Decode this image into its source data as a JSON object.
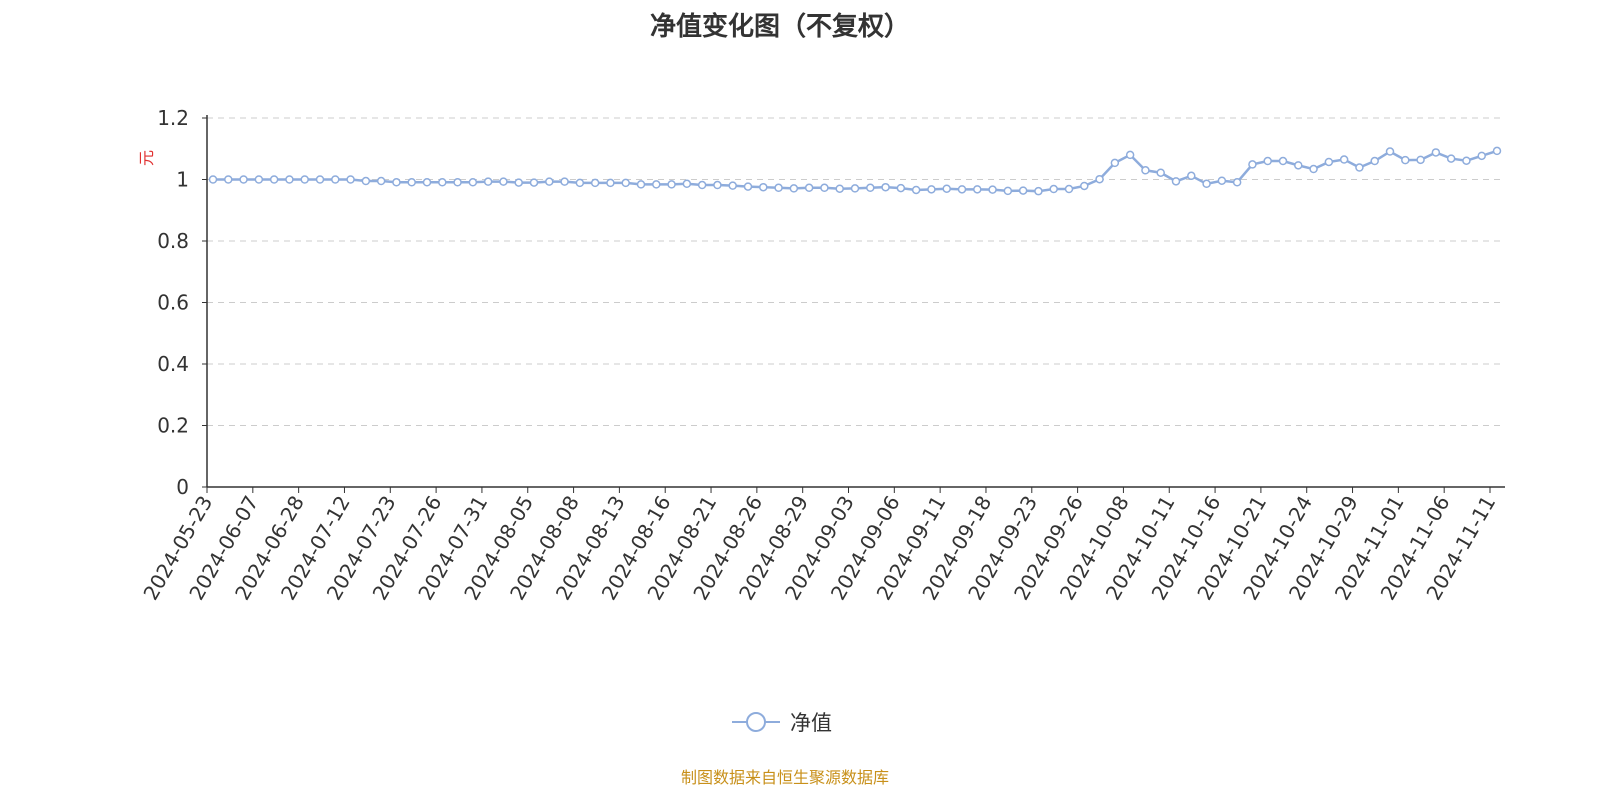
{
  "chart_data": {
    "type": "line",
    "title": "净值变化图（不复权）",
    "ylabel": "元",
    "ylim": [
      0,
      1.2
    ],
    "yticks": [
      "0",
      "0.2",
      "0.4",
      "0.6",
      "0.8",
      "1",
      "1.2"
    ],
    "grid": true,
    "legend_position": "bottom",
    "x_tick_labels": [
      "2024-05-23",
      "2024-06-07",
      "2024-06-28",
      "2024-07-12",
      "2024-07-23",
      "2024-07-26",
      "2024-07-31",
      "2024-08-05",
      "2024-08-08",
      "2024-08-13",
      "2024-08-16",
      "2024-08-21",
      "2024-08-26",
      "2024-08-29",
      "2024-09-03",
      "2024-09-06",
      "2024-09-11",
      "2024-09-18",
      "2024-09-23",
      "2024-09-26",
      "2024-10-08",
      "2024-10-11",
      "2024-10-16",
      "2024-10-21",
      "2024-10-24",
      "2024-10-29",
      "2024-11-01",
      "2024-11-06",
      "2024-11-11"
    ],
    "series": [
      {
        "name": "净值",
        "color": "#8eacdc",
        "values": [
          1.0,
          1.0,
          1.0,
          1.0,
          1.0,
          1.0,
          1.0,
          1.0,
          1.0,
          1.0,
          0.995,
          0.995,
          0.991,
          0.991,
          0.991,
          0.991,
          0.991,
          0.991,
          0.993,
          0.993,
          0.99,
          0.99,
          0.993,
          0.993,
          0.989,
          0.989,
          0.989,
          0.989,
          0.984,
          0.984,
          0.984,
          0.986,
          0.982,
          0.982,
          0.98,
          0.977,
          0.975,
          0.973,
          0.971,
          0.973,
          0.973,
          0.97,
          0.971,
          0.973,
          0.975,
          0.972,
          0.966,
          0.968,
          0.97,
          0.968,
          0.968,
          0.967,
          0.963,
          0.964,
          0.962,
          0.969,
          0.969,
          0.979,
          1.001,
          1.054,
          1.08,
          1.03,
          1.022,
          0.994,
          1.012,
          0.986,
          0.996,
          0.991,
          1.049,
          1.06,
          1.06,
          1.046,
          1.034,
          1.057,
          1.065,
          1.039,
          1.06,
          1.091,
          1.063,
          1.064,
          1.088,
          1.068,
          1.061,
          1.077,
          1.093
        ]
      }
    ]
  },
  "footer": "制图数据来自恒生聚源数据库"
}
